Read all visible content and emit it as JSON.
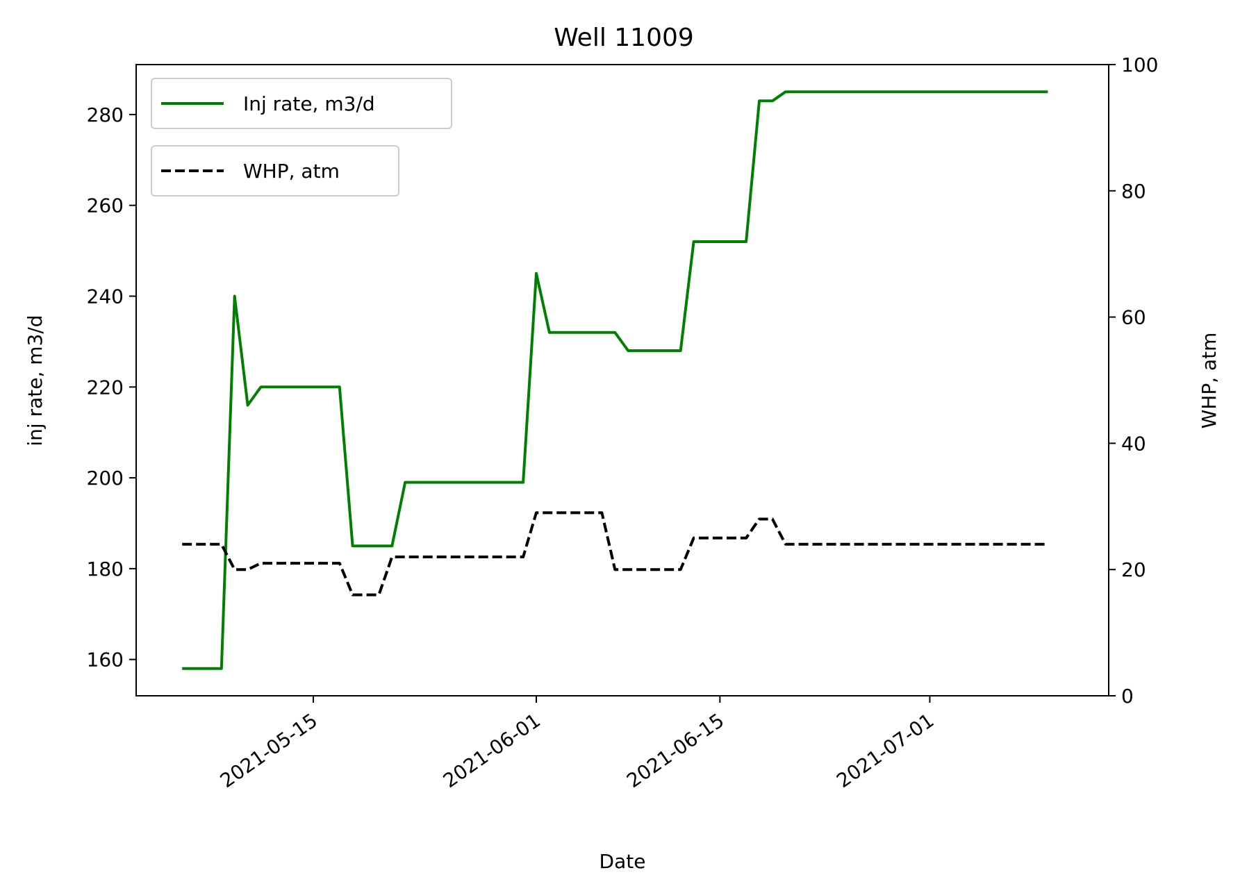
{
  "chart_data": {
    "type": "line",
    "title": "Well 11009",
    "xlabel": "Date",
    "ylabel": "inj rate, m3/d",
    "y2label": "WHP, atm",
    "x_ticks": [
      "2021-05-15",
      "2021-06-01",
      "2021-06-15",
      "2021-07-01"
    ],
    "x_range": [
      "2021-05-01",
      "2021-07-15"
    ],
    "ylim": [
      152,
      291
    ],
    "y_ticks": [
      160,
      180,
      200,
      220,
      240,
      260,
      280
    ],
    "y2lim": [
      0,
      100
    ],
    "y2_ticks": [
      0,
      20,
      40,
      60,
      80,
      100
    ],
    "grid": false,
    "legend_placement": "top-left",
    "series": [
      {
        "name": "Inj rate, m3/d",
        "axis": "left",
        "color": "#008000",
        "style": "solid",
        "x": [
          "2021-05-05",
          "2021-05-08",
          "2021-05-09",
          "2021-05-10",
          "2021-05-11",
          "2021-05-17",
          "2021-05-18",
          "2021-05-21",
          "2021-05-22",
          "2021-05-31",
          "2021-06-01",
          "2021-06-02",
          "2021-06-07",
          "2021-06-08",
          "2021-06-12",
          "2021-06-13",
          "2021-06-17",
          "2021-06-18",
          "2021-06-19",
          "2021-06-20",
          "2021-07-10"
        ],
        "y": [
          158,
          158,
          240,
          216,
          220,
          220,
          185,
          185,
          199,
          199,
          245,
          232,
          232,
          228,
          228,
          252,
          252,
          283,
          283,
          285,
          285
        ]
      },
      {
        "name": "WHP, atm",
        "axis": "right",
        "color": "#000000",
        "style": "dashed",
        "x": [
          "2021-05-05",
          "2021-05-08",
          "2021-05-09",
          "2021-05-10",
          "2021-05-11",
          "2021-05-17",
          "2021-05-18",
          "2021-05-19",
          "2021-05-20",
          "2021-05-21",
          "2021-05-22",
          "2021-05-27",
          "2021-05-31",
          "2021-06-01",
          "2021-06-06",
          "2021-06-07",
          "2021-06-12",
          "2021-06-13",
          "2021-06-17",
          "2021-06-18",
          "2021-06-19",
          "2021-06-20",
          "2021-07-10"
        ],
        "y": [
          24,
          24,
          20,
          20,
          21,
          21,
          16,
          16,
          16,
          22,
          22,
          22,
          22,
          29,
          29,
          20,
          20,
          25,
          25,
          28,
          28,
          24,
          24
        ]
      }
    ]
  }
}
